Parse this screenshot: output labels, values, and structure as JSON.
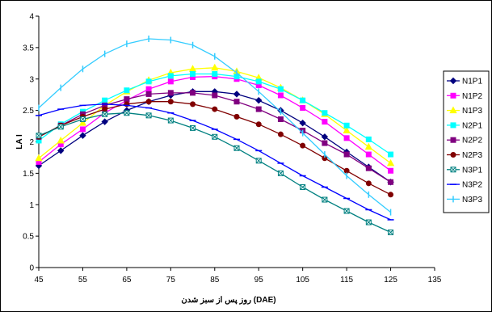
{
  "chart_data": {
    "type": "line",
    "title": "",
    "xlabel": "روز پس از سبز شدن (DAE)",
    "ylabel": "LA I",
    "xlim": [
      45,
      135
    ],
    "ylim": [
      0,
      4
    ],
    "xticks": [
      45,
      55,
      65,
      75,
      85,
      95,
      105,
      115,
      125,
      135
    ],
    "yticks": [
      0,
      0.5,
      1,
      1.5,
      2,
      2.5,
      3,
      3.5,
      4
    ],
    "ytick_labels": [
      "0",
      "0.5",
      "1",
      "1.5",
      "2",
      "2.5",
      "3",
      "3.5",
      "4"
    ],
    "grid": false,
    "legend_position": "right",
    "x": [
      45,
      50,
      55,
      60,
      65,
      70,
      75,
      80,
      85,
      90,
      95,
      100,
      105,
      110,
      115,
      120,
      125
    ],
    "series": [
      {
        "name": "N1P1",
        "color": "#00007f",
        "marker": "diamond",
        "values": [
          1.62,
          1.86,
          2.1,
          2.32,
          2.5,
          2.64,
          2.74,
          2.8,
          2.8,
          2.76,
          2.66,
          2.5,
          2.3,
          2.08,
          1.84,
          1.6,
          1.36
        ]
      },
      {
        "name": "N1P2",
        "color": "#ff00ff",
        "marker": "square",
        "values": [
          1.68,
          1.96,
          2.2,
          2.46,
          2.66,
          2.84,
          2.96,
          3.03,
          3.04,
          3.0,
          2.9,
          2.74,
          2.54,
          2.32,
          2.06,
          1.8,
          1.54
        ]
      },
      {
        "name": "N1P3",
        "color": "#ffff00",
        "marker": "triangle",
        "values": [
          1.74,
          2.02,
          2.3,
          2.58,
          2.8,
          2.98,
          3.1,
          3.16,
          3.18,
          3.12,
          3.02,
          2.86,
          2.66,
          2.44,
          2.18,
          1.92,
          1.66
        ]
      },
      {
        "name": "N2P1",
        "color": "#00ffff",
        "marker": "square",
        "values": [
          2.02,
          2.28,
          2.48,
          2.66,
          2.82,
          2.96,
          3.05,
          3.08,
          3.08,
          3.04,
          2.96,
          2.84,
          2.66,
          2.46,
          2.26,
          2.04,
          1.8
        ]
      },
      {
        "name": "N2P2",
        "color": "#800080",
        "marker": "square",
        "values": [
          2.08,
          2.26,
          2.44,
          2.58,
          2.68,
          2.76,
          2.78,
          2.78,
          2.74,
          2.64,
          2.52,
          2.36,
          2.18,
          1.98,
          1.8,
          1.58,
          1.36
        ]
      },
      {
        "name": "N2P3",
        "color": "#800000",
        "marker": "circle",
        "values": [
          2.08,
          2.26,
          2.4,
          2.52,
          2.6,
          2.64,
          2.64,
          2.6,
          2.52,
          2.4,
          2.28,
          2.12,
          1.94,
          1.74,
          1.54,
          1.34,
          1.16
        ]
      },
      {
        "name": "N3P1",
        "color": "#008080",
        "marker": "square-x",
        "values": [
          2.1,
          2.24,
          2.36,
          2.44,
          2.46,
          2.42,
          2.34,
          2.22,
          2.08,
          1.9,
          1.7,
          1.5,
          1.28,
          1.08,
          0.9,
          0.72,
          0.56
        ]
      },
      {
        "name": "N3P2",
        "color": "#0000ff",
        "marker": "dash",
        "values": [
          2.42,
          2.52,
          2.58,
          2.6,
          2.58,
          2.54,
          2.46,
          2.34,
          2.2,
          2.04,
          1.86,
          1.66,
          1.46,
          1.28,
          1.1,
          0.92,
          0.76
        ]
      },
      {
        "name": "N3P3",
        "color": "#33ccff",
        "marker": "pipe",
        "values": [
          2.54,
          2.86,
          3.16,
          3.4,
          3.56,
          3.64,
          3.62,
          3.54,
          3.36,
          3.1,
          2.8,
          2.48,
          2.14,
          1.8,
          1.46,
          1.16,
          0.88
        ]
      }
    ]
  }
}
